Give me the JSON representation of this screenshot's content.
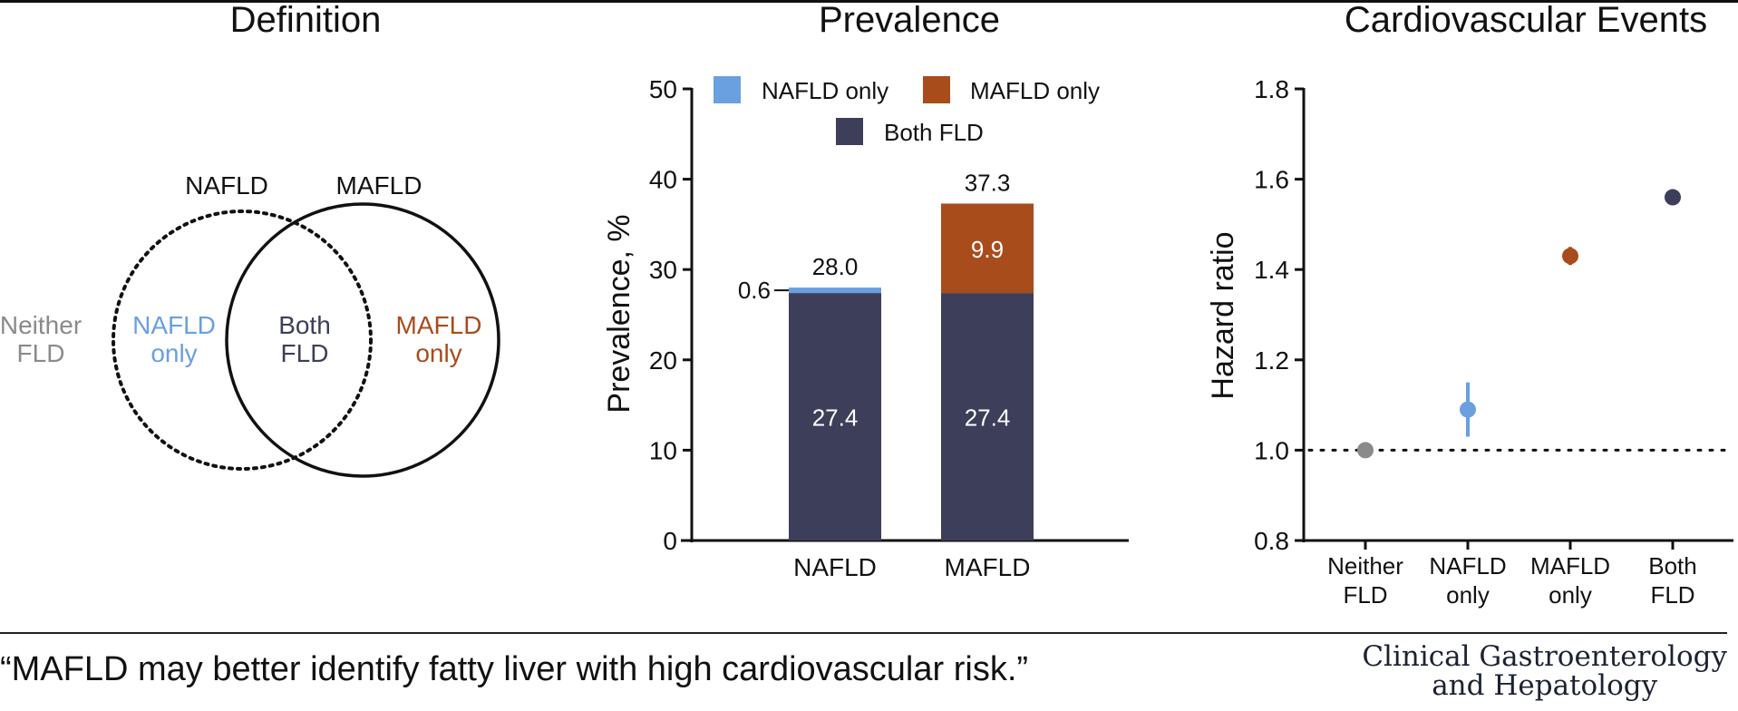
{
  "titles": {
    "definition": "Definition",
    "prevalence": "Prevalence",
    "cardiovascular": "Cardiovascular Events"
  },
  "colors": {
    "nafld_only": "#6A9FE0",
    "mafld_only": "#A84C1C",
    "both_fld": "#3D3E5A",
    "neither_fld": "#8A8A8A",
    "axis": "#111111"
  },
  "venn": {
    "nafld_circle_label": "NAFLD",
    "mafld_circle_label": "MAFLD",
    "nafld_circle_style": "dotted",
    "mafld_circle_style": "solid",
    "regions": {
      "neither": [
        "Neither",
        "FLD"
      ],
      "nafld_only": [
        "NAFLD",
        "only"
      ],
      "both": [
        "Both",
        "FLD"
      ],
      "mafld_only": [
        "MAFLD",
        "only"
      ]
    }
  },
  "chart_data": [
    {
      "type": "bar",
      "stacked": true,
      "title": "Prevalence",
      "xlabel": "",
      "ylabel": "Prevalence, %",
      "ylim": [
        0,
        50
      ],
      "yticks": [
        0,
        10,
        20,
        30,
        40,
        50
      ],
      "categories": [
        "NAFLD",
        "MAFLD"
      ],
      "series": [
        {
          "name": "Both FLD",
          "color_key": "both_fld",
          "values": [
            27.4,
            27.4
          ],
          "labels": [
            "27.4",
            "27.4"
          ]
        },
        {
          "name": "NAFLD only",
          "color_key": "nafld_only",
          "values": [
            0.6,
            0
          ],
          "labels": [
            "0.6",
            ""
          ]
        },
        {
          "name": "MAFLD only",
          "color_key": "mafld_only",
          "values": [
            0,
            9.9
          ],
          "labels": [
            "",
            "9.9"
          ]
        }
      ],
      "totals": [
        28.0,
        37.3
      ],
      "total_labels": [
        "28.0",
        "37.3"
      ],
      "legend": [
        "NAFLD only",
        "MAFLD only",
        "Both FLD"
      ],
      "legend_placement": "top",
      "grid": false
    },
    {
      "type": "scatter",
      "title": "Cardiovascular Events",
      "xlabel": "",
      "ylabel": "Hazard ratio",
      "ylim": [
        0.8,
        1.8
      ],
      "yticks": [
        "0.8",
        "1.0",
        "1.2",
        "1.4",
        "1.6",
        "1.8"
      ],
      "categories": [
        [
          "Neither",
          "FLD"
        ],
        [
          "NAFLD",
          "only"
        ],
        [
          "MAFLD",
          "only"
        ],
        [
          "Both",
          "FLD"
        ]
      ],
      "points": [
        {
          "category": "Neither FLD",
          "hr": 1.0,
          "ci_low": 1.0,
          "ci_high": 1.0,
          "color_key": "neither_fld"
        },
        {
          "category": "NAFLD only",
          "hr": 1.09,
          "ci_low": 1.03,
          "ci_high": 1.15,
          "color_key": "nafld_only"
        },
        {
          "category": "MAFLD only",
          "hr": 1.43,
          "ci_low": 1.41,
          "ci_high": 1.45,
          "color_key": "mafld_only"
        },
        {
          "category": "Both FLD",
          "hr": 1.56,
          "ci_low": 1.55,
          "ci_high": 1.57,
          "color_key": "both_fld"
        }
      ],
      "reference_line": {
        "value": 1.0,
        "style": "dotted"
      },
      "grid": false
    }
  ],
  "footer": {
    "quote": "“MAFLD may better identify fatty liver with high cardiovascular risk.”",
    "journal_line1": "Clinical Gastroenterology",
    "journal_line2": "and Hepatology"
  }
}
